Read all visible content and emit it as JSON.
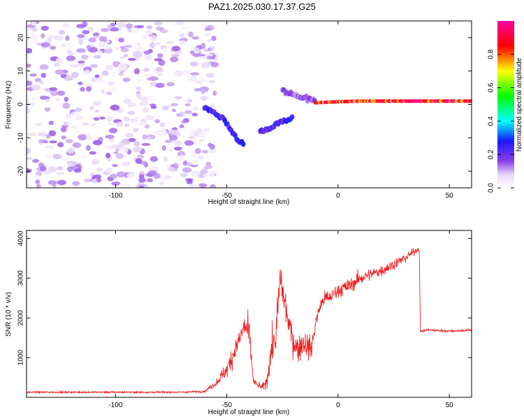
{
  "title": "PAZ1.2025.030.17.37.G25",
  "chart_data": [
    {
      "type": "heatmap",
      "panel": "spectrogram",
      "xlabel": "Height of straight line (km)",
      "ylabel": "Frequency (Hz)",
      "xlim": [
        -140,
        60
      ],
      "ylim": [
        -25,
        25
      ],
      "xticks": [
        -100,
        -50,
        0,
        50
      ],
      "yticks": [
        -20,
        -10,
        0,
        10,
        20
      ],
      "colorbar": {
        "label": "Normalized spectral amplitude",
        "range": [
          0.0,
          1.0
        ],
        "ticks": [
          0.0,
          0.2,
          0.4,
          0.6,
          0.8
        ],
        "colormap": "white-purple-blue-cyan-green-yellow-red-magenta"
      },
      "features": [
        {
          "description": "scattered noise blobs",
          "x_range": [
            -140,
            -55
          ],
          "y_range": [
            -25,
            25
          ],
          "amplitude": 0.05
        },
        {
          "description": "descending signal track",
          "points": [
            [
              -60,
              -1
            ],
            [
              -52,
              -4
            ],
            [
              -48,
              -8
            ],
            [
              -45,
              -11
            ],
            [
              -42,
              -12
            ]
          ],
          "amplitude": 0.25
        },
        {
          "description": "signal near bend",
          "points": [
            [
              -35,
              -8
            ],
            [
              -30,
              -7
            ],
            [
              -25,
              -5
            ],
            [
              -20,
              -4
            ]
          ],
          "amplitude": 0.25
        },
        {
          "description": "rising track",
          "points": [
            [
              -25,
              4
            ],
            [
              -20,
              3
            ],
            [
              -15,
              2
            ],
            [
              -10,
              1
            ]
          ],
          "amplitude": 0.15
        },
        {
          "description": "stable tone",
          "points": [
            [
              -10,
              0.5
            ],
            [
              0,
              0.8
            ],
            [
              10,
              1
            ],
            [
              20,
              1
            ],
            [
              30,
              1
            ],
            [
              40,
              1
            ],
            [
              50,
              1
            ],
            [
              60,
              1
            ]
          ],
          "amplitude": 0.95
        }
      ]
    },
    {
      "type": "line",
      "panel": "snr",
      "xlabel": "Height of straight line (km)",
      "ylabel": "SNR (10 * v/v)",
      "xlim": [
        -140,
        60
      ],
      "ylim": [
        0,
        4200
      ],
      "xticks": [
        -100,
        -50,
        0,
        50
      ],
      "yticks": [
        1000,
        2000,
        3000,
        4000
      ],
      "color": "#ee2222",
      "series": [
        {
          "x": [
            -140,
            -120,
            -100,
            -80,
            -70,
            -60,
            -55,
            -50,
            -47,
            -44,
            -42,
            -40,
            -38,
            -36,
            -34,
            -32,
            -30,
            -28,
            -26,
            -24,
            -22,
            -20,
            -18,
            -16,
            -14,
            -12,
            -10,
            -8,
            -6,
            -4,
            -2,
            0,
            5,
            10,
            15,
            20,
            25,
            30,
            35,
            36.5,
            37,
            40,
            45,
            50,
            55,
            60
          ],
          "y": [
            130,
            130,
            130,
            130,
            130,
            150,
            350,
            700,
            1100,
            1500,
            1800,
            1600,
            400,
            300,
            250,
            400,
            1200,
            1500,
            3000,
            2400,
            1800,
            1400,
            1200,
            1400,
            1300,
            1200,
            1900,
            2300,
            2500,
            2500,
            2600,
            2700,
            2800,
            3000,
            3100,
            3200,
            3350,
            3500,
            3700,
            3750,
            1650,
            1700,
            1680,
            1670,
            1680,
            1690
          ],
          "noise_amplitude": [
            40,
            40,
            40,
            40,
            40,
            40,
            150,
            400,
            550,
            650,
            750,
            750,
            150,
            150,
            150,
            300,
            800,
            900,
            1000,
            900,
            800,
            650,
            600,
            700,
            600,
            550,
            400,
            350,
            350,
            350,
            350,
            350,
            350,
            350,
            300,
            280,
            260,
            240,
            150,
            150,
            60,
            60,
            60,
            60,
            60,
            60
          ]
        }
      ]
    }
  ]
}
